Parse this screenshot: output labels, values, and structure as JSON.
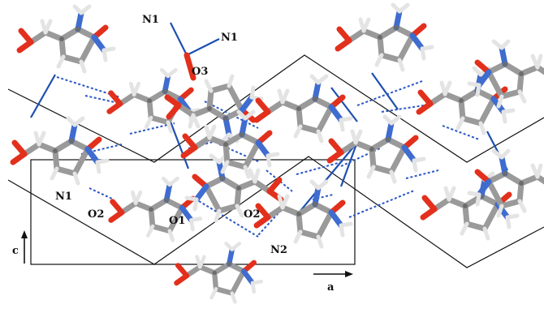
{
  "figure": {
    "atom_labels": {
      "n1_top_left": "N1",
      "n1_top_right": "N1",
      "o3": "O3",
      "n1_left": "N1",
      "o2_left": "O2",
      "o1": "O1",
      "o2_right": "O2",
      "n2": "N2"
    },
    "axes": {
      "c": "c",
      "a": "a"
    },
    "colors": {
      "carbon": "#9a9a9a",
      "oxygen": "#e2301c",
      "nitrogen": "#3f6ccf",
      "hydrogen": "#ececec",
      "h_bond": "#2a56c6",
      "coordination_bond": "#1f4fb0",
      "cell_outline": "#111111"
    }
  }
}
